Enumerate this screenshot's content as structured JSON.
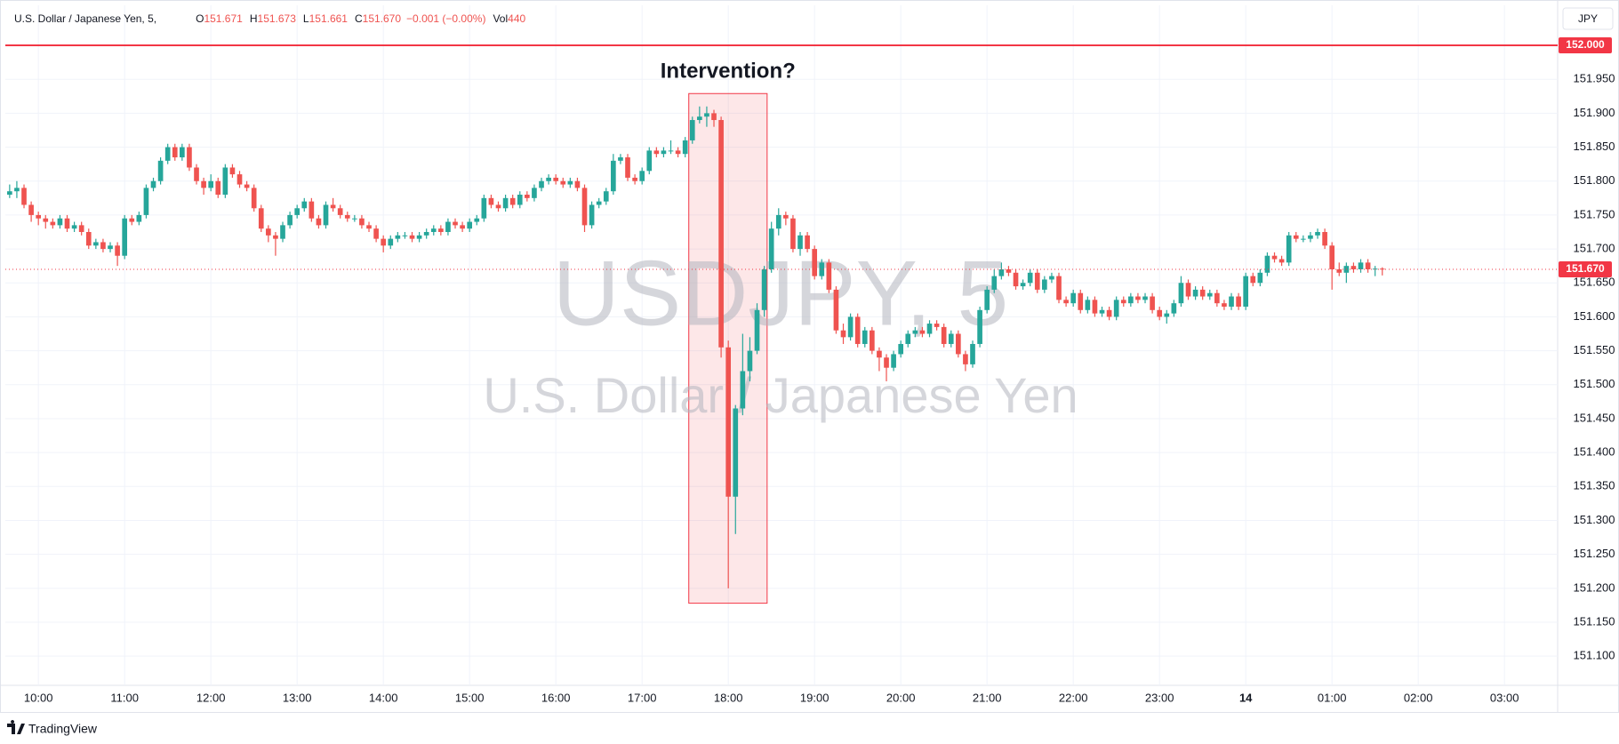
{
  "chart_data": {
    "type": "candlestick",
    "title": "U.S. Dollar / Japanese Yen, 5,",
    "legend_values": [
      {
        "key": "O",
        "value": "151.671"
      },
      {
        "key": "H",
        "value": "151.673"
      },
      {
        "key": "L",
        "value": "151.661"
      },
      {
        "key": "C",
        "value": "151.670"
      }
    ],
    "change": "−0.001 (−0.00%)",
    "volume": {
      "key": "Vol",
      "value": "440"
    },
    "currency": "JPY",
    "watermark": [
      "USDJPY, 5",
      "U.S. Dollar / Japanese Yen"
    ],
    "annotation": {
      "text": "Intervention?",
      "x": [
        94.5,
        105.4
      ],
      "y": [
        151.178,
        151.929
      ],
      "color": "#f23645"
    },
    "hlines": [
      {
        "value": 152,
        "label": "152.000",
        "color": "#f23645",
        "style": "solid"
      },
      {
        "value": 151.67,
        "label": "151.670",
        "color": "#f23645",
        "style": "dotted"
      }
    ],
    "up_color": "#26a69a",
    "down_color": "#ef5350",
    "grid": true,
    "xlim": [
      -0.6,
      215.4
    ],
    "xticks": [
      {
        "value": 4,
        "label": "10:00"
      },
      {
        "value": 16,
        "label": "11:00"
      },
      {
        "value": 28,
        "label": "12:00"
      },
      {
        "value": 40,
        "label": "13:00"
      },
      {
        "value": 52,
        "label": "14:00"
      },
      {
        "value": 64,
        "label": "15:00"
      },
      {
        "value": 76,
        "label": "16:00"
      },
      {
        "value": 88,
        "label": "17:00"
      },
      {
        "value": 100,
        "label": "18:00"
      },
      {
        "value": 112,
        "label": "19:00"
      },
      {
        "value": 124,
        "label": "20:00"
      },
      {
        "value": 136,
        "label": "21:00"
      },
      {
        "value": 148,
        "label": "22:00"
      },
      {
        "value": 160,
        "label": "23:00"
      },
      {
        "value": 172,
        "label": "14"
      },
      {
        "value": 184,
        "label": "01:00"
      },
      {
        "value": 196,
        "label": "02:00"
      },
      {
        "value": 208,
        "label": "03:00"
      }
    ],
    "ylim": [
      151.057,
      152.059
    ],
    "yticks": [
      {
        "value": 151.1,
        "label": "151.100"
      },
      {
        "value": 151.15,
        "label": "151.150"
      },
      {
        "value": 151.2,
        "label": "151.200"
      },
      {
        "value": 151.25,
        "label": "151.250"
      },
      {
        "value": 151.3,
        "label": "151.300"
      },
      {
        "value": 151.35,
        "label": "151.350"
      },
      {
        "value": 151.4,
        "label": "151.400"
      },
      {
        "value": 151.45,
        "label": "151.450"
      },
      {
        "value": 151.5,
        "label": "151.500"
      },
      {
        "value": 151.55,
        "label": "151.550"
      },
      {
        "value": 151.6,
        "label": "151.600"
      },
      {
        "value": 151.65,
        "label": "151.650"
      },
      {
        "value": 151.7,
        "label": "151.700"
      },
      {
        "value": 151.75,
        "label": "151.750"
      },
      {
        "value": 151.8,
        "label": "151.800"
      },
      {
        "value": 151.85,
        "label": "151.850"
      },
      {
        "value": 151.9,
        "label": "151.900"
      },
      {
        "value": 151.95,
        "label": "151.950"
      }
    ],
    "candles": [
      [
        151.78,
        151.795,
        151.775,
        151.785
      ],
      [
        151.785,
        151.8,
        151.775,
        151.79
      ],
      [
        151.79,
        151.795,
        151.76,
        151.765
      ],
      [
        151.765,
        151.77,
        151.74,
        151.75
      ],
      [
        151.75,
        151.755,
        151.735,
        151.745
      ],
      [
        151.745,
        151.75,
        151.73,
        151.74
      ],
      [
        151.74,
        151.745,
        151.73,
        151.735
      ],
      [
        151.735,
        151.75,
        151.73,
        151.745
      ],
      [
        151.745,
        151.75,
        151.725,
        151.73
      ],
      [
        151.73,
        151.74,
        151.725,
        151.735
      ],
      [
        151.735,
        151.74,
        151.72,
        151.725
      ],
      [
        151.725,
        151.73,
        151.7,
        151.705
      ],
      [
        151.705,
        151.715,
        151.7,
        151.71
      ],
      [
        151.71,
        151.715,
        151.695,
        151.7
      ],
      [
        151.7,
        151.71,
        151.695,
        151.705
      ],
      [
        151.705,
        151.71,
        151.675,
        151.69
      ],
      [
        151.69,
        151.75,
        151.685,
        151.745
      ],
      [
        151.745,
        151.75,
        151.735,
        151.74
      ],
      [
        151.74,
        151.755,
        151.735,
        151.75
      ],
      [
        151.75,
        151.795,
        151.745,
        151.79
      ],
      [
        151.79,
        151.805,
        151.785,
        151.8
      ],
      [
        151.8,
        151.835,
        151.795,
        151.83
      ],
      [
        151.83,
        151.855,
        151.825,
        151.85
      ],
      [
        151.85,
        151.855,
        151.83,
        151.835
      ],
      [
        151.835,
        151.855,
        151.83,
        151.85
      ],
      [
        151.85,
        151.855,
        151.815,
        151.82
      ],
      [
        151.82,
        151.825,
        151.795,
        151.8
      ],
      [
        151.8,
        151.805,
        151.78,
        151.79
      ],
      [
        151.79,
        151.81,
        151.785,
        151.8
      ],
      [
        151.8,
        151.805,
        151.775,
        151.78
      ],
      [
        151.78,
        151.825,
        151.775,
        151.82
      ],
      [
        151.82,
        151.825,
        151.805,
        151.81
      ],
      [
        151.81,
        151.815,
        151.79,
        151.795
      ],
      [
        151.795,
        151.8,
        151.785,
        151.79
      ],
      [
        151.79,
        151.795,
        151.755,
        151.76
      ],
      [
        151.76,
        151.765,
        151.725,
        151.73
      ],
      [
        151.73,
        151.735,
        151.71,
        151.72
      ],
      [
        151.72,
        151.725,
        151.69,
        151.715
      ],
      [
        151.715,
        151.74,
        151.71,
        151.735
      ],
      [
        151.735,
        151.755,
        151.73,
        151.75
      ],
      [
        151.75,
        151.765,
        151.745,
        151.76
      ],
      [
        151.76,
        151.775,
        151.755,
        151.77
      ],
      [
        151.77,
        151.775,
        151.74,
        151.745
      ],
      [
        151.745,
        151.75,
        151.73,
        151.735
      ],
      [
        151.735,
        151.77,
        151.73,
        151.765
      ],
      [
        151.765,
        151.775,
        151.755,
        151.76
      ],
      [
        151.76,
        151.765,
        151.745,
        151.75
      ],
      [
        151.75,
        151.755,
        151.74,
        151.745
      ],
      [
        151.745,
        151.75,
        151.74,
        151.745
      ],
      [
        151.745,
        151.75,
        151.73,
        151.735
      ],
      [
        151.735,
        151.74,
        151.725,
        151.73
      ],
      [
        151.73,
        151.735,
        151.71,
        151.715
      ],
      [
        151.715,
        151.72,
        151.695,
        151.705
      ],
      [
        151.705,
        151.72,
        151.7,
        151.715
      ],
      [
        151.715,
        151.725,
        151.71,
        151.72
      ],
      [
        151.72,
        151.725,
        151.715,
        151.72
      ],
      [
        151.72,
        151.725,
        151.71,
        151.715
      ],
      [
        151.715,
        151.725,
        151.71,
        151.72
      ],
      [
        151.72,
        151.73,
        151.715,
        151.725
      ],
      [
        151.725,
        151.735,
        151.72,
        151.73
      ],
      [
        151.73,
        151.735,
        151.72,
        151.725
      ],
      [
        151.725,
        151.745,
        151.72,
        151.74
      ],
      [
        151.74,
        151.745,
        151.73,
        151.735
      ],
      [
        151.735,
        151.74,
        151.725,
        151.73
      ],
      [
        151.73,
        151.745,
        151.725,
        151.74
      ],
      [
        151.74,
        151.75,
        151.735,
        151.745
      ],
      [
        151.745,
        151.78,
        151.74,
        151.775
      ],
      [
        151.775,
        151.78,
        151.76,
        151.765
      ],
      [
        151.765,
        151.77,
        151.755,
        151.76
      ],
      [
        151.76,
        151.78,
        151.755,
        151.775
      ],
      [
        151.775,
        151.78,
        151.76,
        151.765
      ],
      [
        151.765,
        151.785,
        151.76,
        151.78
      ],
      [
        151.78,
        151.785,
        151.77,
        151.775
      ],
      [
        151.775,
        151.795,
        151.77,
        151.79
      ],
      [
        151.79,
        151.805,
        151.785,
        151.8
      ],
      [
        151.8,
        151.81,
        151.795,
        151.805
      ],
      [
        151.805,
        151.81,
        151.795,
        151.8
      ],
      [
        151.8,
        151.805,
        151.79,
        151.795
      ],
      [
        151.795,
        151.805,
        151.79,
        151.8
      ],
      [
        151.8,
        151.805,
        151.785,
        151.79
      ],
      [
        151.79,
        151.795,
        151.725,
        151.735
      ],
      [
        151.735,
        151.77,
        151.73,
        151.765
      ],
      [
        151.765,
        151.775,
        151.76,
        151.77
      ],
      [
        151.77,
        151.79,
        151.765,
        151.785
      ],
      [
        151.785,
        151.84,
        151.78,
        151.83
      ],
      [
        151.83,
        151.84,
        151.825,
        151.835
      ],
      [
        151.835,
        151.84,
        151.8,
        151.805
      ],
      [
        151.805,
        151.81,
        151.795,
        151.8
      ],
      [
        151.8,
        151.82,
        151.795,
        151.815
      ],
      [
        151.815,
        151.85,
        151.81,
        151.845
      ],
      [
        151.845,
        151.85,
        151.835,
        151.84
      ],
      [
        151.84,
        151.85,
        151.835,
        151.845
      ],
      [
        151.845,
        151.86,
        151.84,
        151.845
      ],
      [
        151.845,
        151.85,
        151.835,
        151.84
      ],
      [
        151.84,
        151.865,
        151.835,
        151.86
      ],
      [
        151.86,
        151.895,
        151.855,
        151.89
      ],
      [
        151.89,
        151.91,
        151.885,
        151.895
      ],
      [
        151.895,
        151.91,
        151.88,
        151.9
      ],
      [
        151.9,
        151.905,
        151.88,
        151.89
      ],
      [
        151.89,
        151.895,
        151.54,
        151.555
      ],
      [
        151.555,
        151.565,
        151.2,
        151.335
      ],
      [
        151.335,
        151.47,
        151.28,
        151.465
      ],
      [
        151.465,
        151.575,
        151.455,
        151.52
      ],
      [
        151.52,
        151.57,
        151.505,
        151.55
      ],
      [
        151.55,
        151.62,
        151.545,
        151.61
      ],
      [
        151.61,
        151.675,
        151.6,
        151.67
      ],
      [
        151.67,
        151.74,
        151.665,
        151.73
      ],
      [
        151.73,
        151.76,
        151.72,
        151.75
      ],
      [
        151.75,
        151.755,
        151.735,
        151.745
      ],
      [
        151.745,
        151.75,
        151.695,
        151.7
      ],
      [
        151.7,
        151.725,
        151.69,
        151.72
      ],
      [
        151.72,
        151.725,
        151.695,
        151.7
      ],
      [
        151.7,
        151.705,
        151.655,
        151.66
      ],
      [
        151.66,
        151.685,
        151.655,
        151.68
      ],
      [
        151.68,
        151.685,
        151.635,
        151.64
      ],
      [
        151.64,
        151.645,
        151.575,
        151.58
      ],
      [
        151.58,
        151.59,
        151.56,
        151.57
      ],
      [
        151.57,
        151.605,
        151.565,
        151.6
      ],
      [
        151.6,
        151.605,
        151.555,
        151.56
      ],
      [
        151.56,
        151.585,
        151.555,
        151.58
      ],
      [
        151.58,
        151.585,
        151.545,
        151.55
      ],
      [
        151.55,
        151.555,
        151.52,
        151.54
      ],
      [
        151.54,
        151.545,
        151.505,
        151.525
      ],
      [
        151.525,
        151.55,
        151.52,
        151.545
      ],
      [
        151.545,
        151.565,
        151.54,
        151.56
      ],
      [
        151.56,
        151.58,
        151.555,
        151.575
      ],
      [
        151.575,
        151.585,
        151.57,
        151.58
      ],
      [
        151.58,
        151.585,
        151.57,
        151.575
      ],
      [
        151.575,
        151.595,
        151.57,
        151.59
      ],
      [
        151.59,
        151.595,
        151.58,
        151.585
      ],
      [
        151.585,
        151.59,
        151.555,
        151.56
      ],
      [
        151.56,
        151.58,
        151.555,
        151.575
      ],
      [
        151.575,
        151.58,
        151.54,
        151.545
      ],
      [
        151.545,
        151.55,
        151.52,
        151.53
      ],
      [
        151.53,
        151.565,
        151.525,
        151.56
      ],
      [
        151.56,
        151.615,
        151.555,
        151.61
      ],
      [
        151.61,
        151.645,
        151.605,
        151.64
      ],
      [
        151.64,
        151.67,
        151.635,
        151.66
      ],
      [
        151.66,
        151.68,
        151.655,
        151.67
      ],
      [
        151.67,
        151.675,
        151.66,
        151.665
      ],
      [
        151.665,
        151.67,
        151.64,
        151.645
      ],
      [
        151.645,
        151.655,
        151.64,
        151.65
      ],
      [
        151.65,
        151.67,
        151.645,
        151.665
      ],
      [
        151.665,
        151.67,
        151.635,
        151.64
      ],
      [
        151.64,
        151.66,
        151.635,
        151.655
      ],
      [
        151.655,
        151.665,
        151.65,
        151.66
      ],
      [
        151.66,
        151.665,
        151.62,
        151.625
      ],
      [
        151.625,
        151.63,
        151.615,
        151.62
      ],
      [
        151.62,
        151.64,
        151.615,
        151.635
      ],
      [
        151.635,
        151.64,
        151.605,
        151.61
      ],
      [
        151.61,
        151.63,
        151.605,
        151.625
      ],
      [
        151.625,
        151.63,
        151.6,
        151.605
      ],
      [
        151.605,
        151.615,
        151.6,
        151.61
      ],
      [
        151.61,
        151.615,
        151.595,
        151.6
      ],
      [
        151.6,
        151.63,
        151.595,
        151.625
      ],
      [
        151.625,
        151.63,
        151.615,
        151.62
      ],
      [
        151.62,
        151.635,
        151.615,
        151.63
      ],
      [
        151.63,
        151.635,
        151.62,
        151.625
      ],
      [
        151.625,
        151.635,
        151.62,
        151.63
      ],
      [
        151.63,
        151.635,
        151.605,
        151.61
      ],
      [
        151.61,
        151.615,
        151.595,
        151.6
      ],
      [
        151.6,
        151.61,
        151.59,
        151.605
      ],
      [
        151.605,
        151.625,
        151.6,
        151.62
      ],
      [
        151.62,
        151.66,
        151.615,
        151.65
      ],
      [
        151.65,
        151.655,
        151.625,
        151.63
      ],
      [
        151.63,
        151.645,
        151.625,
        151.64
      ],
      [
        151.64,
        151.645,
        151.625,
        151.63
      ],
      [
        151.63,
        151.64,
        151.625,
        151.635
      ],
      [
        151.635,
        151.64,
        151.615,
        151.62
      ],
      [
        151.62,
        151.625,
        151.61,
        151.615
      ],
      [
        151.615,
        151.635,
        151.61,
        151.63
      ],
      [
        151.63,
        151.635,
        151.61,
        151.615
      ],
      [
        151.615,
        151.665,
        151.61,
        151.66
      ],
      [
        151.66,
        151.665,
        151.645,
        151.65
      ],
      [
        151.65,
        151.67,
        151.645,
        151.665
      ],
      [
        151.665,
        151.695,
        151.66,
        151.69
      ],
      [
        151.69,
        151.695,
        151.68,
        151.685
      ],
      [
        151.685,
        151.69,
        151.675,
        151.68
      ],
      [
        151.68,
        151.725,
        151.675,
        151.72
      ],
      [
        151.72,
        151.725,
        151.71,
        151.715
      ],
      [
        151.715,
        151.72,
        151.71,
        151.715
      ],
      [
        151.715,
        151.725,
        151.71,
        151.72
      ],
      [
        151.72,
        151.73,
        151.715,
        151.725
      ],
      [
        151.725,
        151.73,
        151.7,
        151.705
      ],
      [
        151.705,
        151.71,
        151.64,
        151.67
      ],
      [
        151.67,
        151.68,
        151.66,
        151.665
      ],
      [
        151.665,
        151.68,
        151.65,
        151.675
      ],
      [
        151.675,
        151.68,
        151.665,
        151.67
      ],
      [
        151.67,
        151.685,
        151.665,
        151.68
      ],
      [
        151.68,
        151.685,
        151.665,
        151.67
      ],
      [
        151.67,
        151.675,
        151.66,
        151.671
      ],
      [
        151.671,
        151.673,
        151.661,
        151.67
      ]
    ]
  },
  "branding": "TradingView"
}
